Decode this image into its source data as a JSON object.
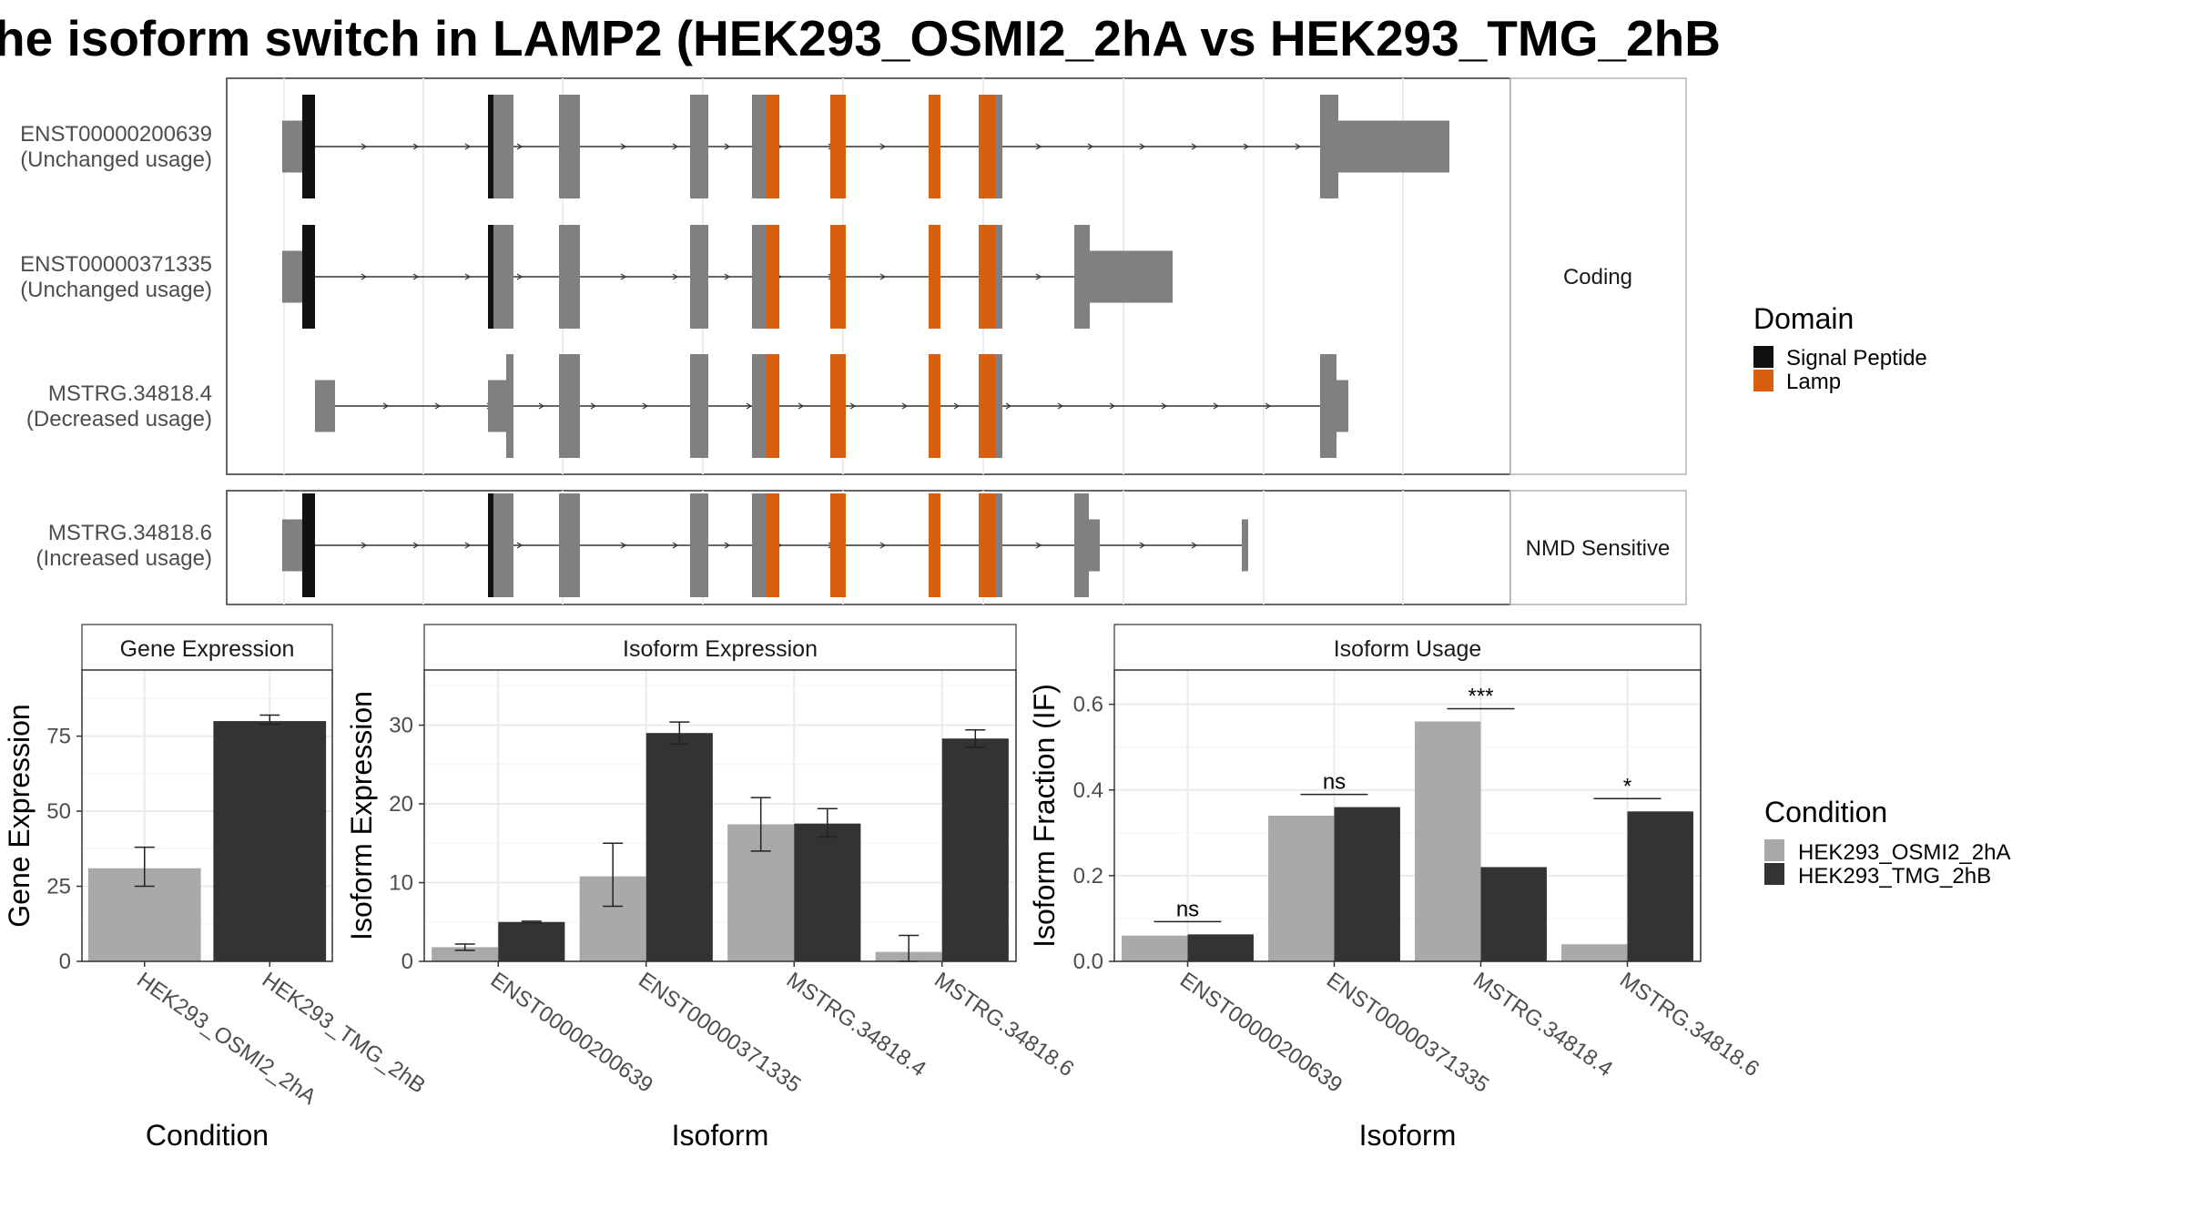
{
  "title": "he isoform switch in LAMP2 (HEK293_OSMI2_2hA vs HEK293_TMG_2hB",
  "colors": {
    "exon": "#808080",
    "signal_peptide": "#111111",
    "lamp": "#d95f0e",
    "cond_a": "#a9a9a9",
    "cond_b": "#333333"
  },
  "structure": {
    "facet_labels": [
      "Coding",
      "NMD Sensitive"
    ],
    "legend": {
      "title": "Domain",
      "items": [
        {
          "label": "Signal Peptide",
          "color": "#111111"
        },
        {
          "label": "Lamp",
          "color": "#d95f0e"
        }
      ]
    },
    "transcripts": [
      {
        "name": "ENST00000200639",
        "usage": "(Unchanged usage)",
        "group": "Coding"
      },
      {
        "name": "ENST00000371335",
        "usage": "(Unchanged usage)",
        "group": "Coding"
      },
      {
        "name": "MSTRG.34818.4",
        "usage": "(Decreased usage)",
        "group": "Coding"
      },
      {
        "name": "MSTRG.34818.6",
        "usage": "(Increased usage)",
        "group": "NMD Sensitive"
      }
    ]
  },
  "condition_legend": {
    "title": "Condition",
    "items": [
      {
        "label": "HEK293_OSMI2_2hA",
        "color": "#a9a9a9"
      },
      {
        "label": "HEK293_TMG_2hB",
        "color": "#333333"
      }
    ]
  },
  "chart_data": [
    {
      "type": "bar",
      "title": "Gene Expression",
      "xlabel": "Condition",
      "ylabel": "Gene Expression",
      "ylim": [
        0,
        97
      ],
      "yticks": [
        0,
        25,
        50,
        75
      ],
      "categories": [
        "HEK293_OSMI2_2hA",
        "HEK293_TMG_2hB"
      ],
      "values": [
        31,
        80
      ],
      "errors": [
        [
          25,
          38
        ],
        [
          79,
          82
        ]
      ],
      "colors": [
        "#a9a9a9",
        "#333333"
      ]
    },
    {
      "type": "bar",
      "title": "Isoform Expression",
      "xlabel": "Isoform",
      "ylabel": "Isoform Expression",
      "ylim": [
        0,
        37
      ],
      "yticks": [
        0,
        10,
        20,
        30
      ],
      "categories": [
        "ENST00000200639",
        "ENST00000371335",
        "MSTRG.34818.4",
        "MSTRG.34818.6"
      ],
      "series": [
        {
          "values": [
            1.8,
            10.8,
            17.4,
            1.2
          ],
          "errors": [
            [
              1.4,
              2.2
            ],
            [
              7.0,
              15.0
            ],
            [
              14.0,
              20.8
            ],
            [
              0,
              3.3
            ]
          ]
        },
        {
          "values": [
            5.0,
            29.0,
            17.5,
            28.3
          ],
          "errors": [
            [
              4.9,
              5.1
            ],
            [
              27.6,
              30.4
            ],
            [
              15.8,
              19.4
            ],
            [
              27.2,
              29.4
            ]
          ]
        }
      ]
    },
    {
      "type": "bar",
      "title": "Isoform Usage",
      "xlabel": "Isoform",
      "ylabel": "Isoform Fraction (IF)",
      "ylim": [
        0,
        0.68
      ],
      "yticks": [
        0.0,
        0.2,
        0.4,
        0.6
      ],
      "categories": [
        "ENST00000200639",
        "ENST00000371335",
        "MSTRG.34818.4",
        "MSTRG.34818.6"
      ],
      "series": [
        {
          "values": [
            0.06,
            0.34,
            0.56,
            0.04
          ]
        },
        {
          "values": [
            0.063,
            0.36,
            0.22,
            0.35
          ]
        }
      ],
      "significance": [
        "ns",
        "ns",
        "***",
        "*"
      ]
    }
  ]
}
